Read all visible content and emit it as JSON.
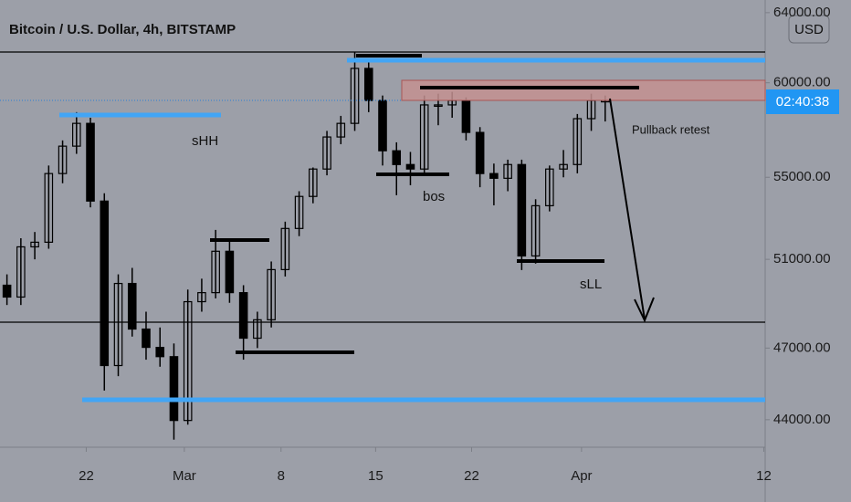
{
  "chart_data": {
    "type": "candlestick",
    "title": "Bitcoin / U.S. Dollar, 4h, BITSTAMP",
    "currency": "USD",
    "countdown": "02:40:38",
    "annotations": [
      "sHH",
      "bos",
      "sLL",
      "Pullback retest"
    ],
    "log_scale": true,
    "color": "#000000",
    "ylim": [
      42900,
      64750
    ],
    "yticks": [
      {
        "value": 64000,
        "label": "64000.00"
      },
      {
        "value": 60000,
        "label": "60000.00"
      },
      {
        "value": 55000,
        "label": "55000.00"
      },
      {
        "value": 51000,
        "label": "51000.00"
      },
      {
        "value": 47000,
        "label": "47000.00"
      },
      {
        "value": 44000,
        "label": "44000.00"
      }
    ],
    "xlim": [
      0,
      55
    ],
    "xticks": [
      {
        "value": 6.2,
        "label": "22"
      },
      {
        "value": 13.25,
        "label": "Mar"
      },
      {
        "value": 20.2,
        "label": "8"
      },
      {
        "value": 27,
        "label": "15"
      },
      {
        "value": 33.9,
        "label": "22"
      },
      {
        "value": 41.8,
        "label": "Apr"
      },
      {
        "value": 54.9,
        "label": "12"
      }
    ],
    "x": [
      0.5,
      1.5,
      2.5,
      3.5,
      4.5,
      5.5,
      6.5,
      7.5,
      8.5,
      9.5,
      10.5,
      11.5,
      12.5,
      13.5,
      14.5,
      15.5,
      16.5,
      17.5,
      18.5,
      19.5,
      20.5,
      21.5,
      22.5,
      23.5,
      24.5,
      25.5,
      26.5,
      27.5,
      28.5,
      29.5,
      30.5,
      31.5,
      32.5,
      33.5,
      34.5,
      35.5,
      36.5,
      37.5,
      38.5,
      39.5,
      40.5,
      41.5,
      42.5,
      43.5
    ],
    "open": [
      49800,
      49260,
      51590,
      51810,
      55190,
      56600,
      57800,
      53810,
      46250,
      49880,
      47830,
      47030,
      46630,
      43970,
      49050,
      49460,
      51380,
      49460,
      47430,
      48240,
      50520,
      52470,
      54040,
      55420,
      57080,
      57800,
      60800,
      59030,
      56360,
      55650,
      55420,
      58790,
      58790,
      59030,
      57320,
      55190,
      54950,
      55650,
      51160,
      53580,
      55420,
      55650,
      58050,
      59030
    ],
    "high": [
      50300,
      52000,
      52300,
      55600,
      56900,
      58400,
      58100,
      54200,
      50300,
      50600,
      48600,
      47900,
      47200,
      49600,
      50100,
      52400,
      52000,
      49800,
      48600,
      50900,
      52800,
      54300,
      55500,
      57400,
      58200,
      61700,
      61200,
      59300,
      56800,
      56300,
      59300,
      59400,
      59500,
      59200,
      57600,
      55700,
      55900,
      55900,
      53900,
      55600,
      56400,
      58300,
      59400,
      59300
    ],
    "low": [
      48900,
      48900,
      51000,
      51500,
      54700,
      56200,
      53500,
      45200,
      45800,
      47500,
      46500,
      46200,
      43200,
      43800,
      48600,
      49200,
      49000,
      46500,
      47000,
      47900,
      50200,
      52100,
      53700,
      55100,
      56700,
      57400,
      58400,
      55600,
      54100,
      54600,
      55100,
      57700,
      58100,
      56900,
      54500,
      53600,
      54300,
      50500,
      50800,
      53300,
      55000,
      55200,
      57400,
      57900
    ],
    "close": [
      49260,
      51590,
      51810,
      55190,
      56600,
      57800,
      53810,
      46250,
      49880,
      47830,
      47030,
      46630,
      43970,
      49050,
      49460,
      51380,
      49460,
      47430,
      48240,
      50520,
      52470,
      54040,
      55420,
      57080,
      57800,
      60800,
      59030,
      56360,
      55650,
      55420,
      58790,
      58790,
      59030,
      57320,
      55190,
      54950,
      55650,
      51160,
      53580,
      55420,
      55650,
      58050,
      59030,
      59030
    ]
  }
}
